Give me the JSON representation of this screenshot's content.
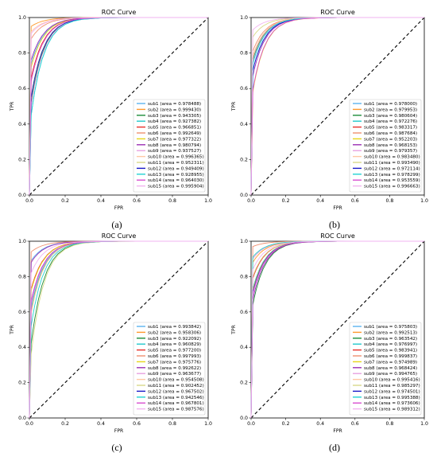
{
  "figure": {
    "background": "#ffffff"
  },
  "chart_data": [
    {
      "panel": "(a)",
      "type": "line",
      "title": "ROC Curve",
      "xlabel": "FPR",
      "ylabel": "TPR",
      "xlim": [
        0,
        1
      ],
      "ylim": [
        0,
        1
      ],
      "xticks": [
        "0.0",
        "0.2",
        "0.4",
        "0.6",
        "0.8",
        "1.0"
      ],
      "yticks": [
        "0.0",
        "0.2",
        "0.4",
        "0.6",
        "0.8",
        "1.0"
      ],
      "grid": false,
      "legend_position": "lower right",
      "diagonal": true,
      "series": [
        {
          "name": "sub1 (area = 0.978488)",
          "color": "#5ab4ef",
          "tpr_at_001": 0.74
        },
        {
          "name": "sub2 (area = 0.999430)",
          "color": "#ff9a2e",
          "tpr_at_001": 0.95
        },
        {
          "name": "sub3 (area = 0.943305)",
          "color": "#1e8c3a",
          "tpr_at_001": 0.52
        },
        {
          "name": "sub4 (area = 0.927382)",
          "color": "#22c9cc",
          "tpr_at_001": 0.45
        },
        {
          "name": "sub5 (area = 0.966851)",
          "color": "#e8302a",
          "tpr_at_001": 0.66
        },
        {
          "name": "sub6 (area = 0.992649)",
          "color": "#f09070",
          "tpr_at_001": 0.88
        },
        {
          "name": "sub7 (area = 0.977322)",
          "color": "#e6d619",
          "tpr_at_001": 0.72
        },
        {
          "name": "sub8 (area = 0.980794)",
          "color": "#9b2fb5",
          "tpr_at_001": 0.76
        },
        {
          "name": "sub9 (area = 0.937527)",
          "color": "#e8a2e0",
          "tpr_at_001": 0.5
        },
        {
          "name": "sub10 (area = 0.996365)",
          "color": "#ffc9a5",
          "tpr_at_001": 0.92
        },
        {
          "name": "sub11 (area = 0.952311)",
          "color": "#d9d98a",
          "tpr_at_001": 0.56
        },
        {
          "name": "sub12 (area = 0.949409)",
          "color": "#1818c8",
          "tpr_at_001": 0.55
        },
        {
          "name": "sub13 (area = 0.928955)",
          "color": "#22d3d3",
          "tpr_at_001": 0.45
        },
        {
          "name": "sub14 (area = 0.964030)",
          "color": "#d94fd0",
          "tpr_at_001": 0.64
        },
        {
          "name": "sub15 (area = 0.995904)",
          "color": "#f2b3f0",
          "tpr_at_001": 0.91
        }
      ]
    },
    {
      "panel": "(b)",
      "type": "line",
      "title": "ROC Curve",
      "xlabel": "FPR",
      "ylabel": "TPR",
      "xlim": [
        0,
        1
      ],
      "ylim": [
        0,
        1
      ],
      "xticks": [
        "0.0",
        "0.2",
        "0.4",
        "0.6",
        "0.8",
        "1.0"
      ],
      "yticks": [
        "0.0",
        "0.2",
        "0.4",
        "0.6",
        "0.8",
        "1.0"
      ],
      "grid": false,
      "legend_position": "lower right",
      "diagonal": true,
      "series": [
        {
          "name": "sub1 (area = 0.978000)",
          "color": "#5ab4ef",
          "tpr_at_001": 0.74
        },
        {
          "name": "sub2 (area = 0.979953)",
          "color": "#ff9a2e",
          "tpr_at_001": 0.75
        },
        {
          "name": "sub3 (area = 0.980604)",
          "color": "#1e8c3a",
          "tpr_at_001": 0.76
        },
        {
          "name": "sub4 (area = 0.972276)",
          "color": "#22c9cc",
          "tpr_at_001": 0.7
        },
        {
          "name": "sub5 (area = 0.983317)",
          "color": "#e8302a",
          "tpr_at_001": 0.78
        },
        {
          "name": "sub6 (area = 0.987684)",
          "color": "#f09070",
          "tpr_at_001": 0.81
        },
        {
          "name": "sub7 (area = 0.952203)",
          "color": "#e6d619",
          "tpr_at_001": 0.58
        },
        {
          "name": "sub8 (area = 0.968153)",
          "color": "#9b2fb5",
          "tpr_at_001": 0.67
        },
        {
          "name": "sub9 (area = 0.979357)",
          "color": "#e8a2e0",
          "tpr_at_001": 0.75
        },
        {
          "name": "sub10 (area = 0.983480)",
          "color": "#ffc9a5",
          "tpr_at_001": 0.78
        },
        {
          "name": "sub11 (area = 0.993490)",
          "color": "#d9d98a",
          "tpr_at_001": 0.89
        },
        {
          "name": "sub12 (area = 0.972114)",
          "color": "#1818c8",
          "tpr_at_001": 0.7
        },
        {
          "name": "sub13 (area = 0.978299)",
          "color": "#22d3d3",
          "tpr_at_001": 0.74
        },
        {
          "name": "sub14 (area = 0.953559)",
          "color": "#d94fd0",
          "tpr_at_001": 0.59
        },
        {
          "name": "sub15 (area = 0.996663)",
          "color": "#f2b3f0",
          "tpr_at_001": 0.93
        }
      ]
    },
    {
      "panel": "(c)",
      "type": "line",
      "title": "ROC Curve",
      "xlabel": "FPR",
      "ylabel": "TPR",
      "xlim": [
        0,
        1
      ],
      "ylim": [
        0,
        1
      ],
      "xticks": [
        "0.0",
        "0.2",
        "0.4",
        "0.6",
        "0.8",
        "1.0"
      ],
      "yticks": [
        "0.0",
        "0.2",
        "0.4",
        "0.6",
        "0.8",
        "1.0"
      ],
      "grid": false,
      "legend_position": "lower right",
      "diagonal": true,
      "series": [
        {
          "name": "sub1 (area = 0.993842)",
          "color": "#5ab4ef",
          "tpr_at_001": 0.89
        },
        {
          "name": "sub2 (area = 0.958306)",
          "color": "#ff9a2e",
          "tpr_at_001": 0.61
        },
        {
          "name": "sub3 (area = 0.922092)",
          "color": "#1e8c3a",
          "tpr_at_001": 0.42
        },
        {
          "name": "sub4 (area = 0.960829)",
          "color": "#22c9cc",
          "tpr_at_001": 0.62
        },
        {
          "name": "sub5 (area = 0.977200)",
          "color": "#e8302a",
          "tpr_at_001": 0.73
        },
        {
          "name": "sub6 (area = 0.997993)",
          "color": "#f09070",
          "tpr_at_001": 0.94
        },
        {
          "name": "sub7 (area = 0.975776)",
          "color": "#e6d619",
          "tpr_at_001": 0.72
        },
        {
          "name": "sub8 (area = 0.992622)",
          "color": "#9b2fb5",
          "tpr_at_001": 0.88
        },
        {
          "name": "sub9 (area = 0.963677)",
          "color": "#e8a2e0",
          "tpr_at_001": 0.64
        },
        {
          "name": "sub10 (area = 0.954508)",
          "color": "#ffc9a5",
          "tpr_at_001": 0.59
        },
        {
          "name": "sub11 (area = 0.902452)",
          "color": "#d9d98a",
          "tpr_at_001": 0.36
        },
        {
          "name": "sub12 (area = 0.967502)",
          "color": "#1818c8",
          "tpr_at_001": 0.66
        },
        {
          "name": "sub13 (area = 0.942546)",
          "color": "#22d3d3",
          "tpr_at_001": 0.52
        },
        {
          "name": "sub14 (area = 0.967801)",
          "color": "#d94fd0",
          "tpr_at_001": 0.66
        },
        {
          "name": "sub15 (area = 0.987576)",
          "color": "#f2b3f0",
          "tpr_at_001": 0.82
        }
      ]
    },
    {
      "panel": "(d)",
      "type": "line",
      "title": "ROC Curve",
      "xlabel": "FPR",
      "ylabel": "TPR",
      "xlim": [
        0,
        1
      ],
      "ylim": [
        0,
        1
      ],
      "xticks": [
        "0.0",
        "0.2",
        "0.4",
        "0.6",
        "0.8",
        "1.0"
      ],
      "yticks": [
        "0.0",
        "0.2",
        "0.4",
        "0.6",
        "0.8",
        "1.0"
      ],
      "grid": false,
      "legend_position": "lower right",
      "diagonal": true,
      "series": [
        {
          "name": "sub1 (area = 0.975803)",
          "color": "#5ab4ef",
          "tpr_at_001": 0.72
        },
        {
          "name": "sub2 (area = 0.992513)",
          "color": "#ff9a2e",
          "tpr_at_001": 0.88
        },
        {
          "name": "sub3 (area = 0.963542)",
          "color": "#1e8c3a",
          "tpr_at_001": 0.64
        },
        {
          "name": "sub4 (area = 0.976997)",
          "color": "#22c9cc",
          "tpr_at_001": 0.73
        },
        {
          "name": "sub5 (area = 0.983941)",
          "color": "#e8302a",
          "tpr_at_001": 0.79
        },
        {
          "name": "sub6 (area = 0.999837)",
          "color": "#f09070",
          "tpr_at_001": 0.97
        },
        {
          "name": "sub7 (area = 0.974989)",
          "color": "#e6d619",
          "tpr_at_001": 0.72
        },
        {
          "name": "sub8 (area = 0.968424)",
          "color": "#9b2fb5",
          "tpr_at_001": 0.67
        },
        {
          "name": "sub9 (area = 0.994765)",
          "color": "#e8a2e0",
          "tpr_at_001": 0.9
        },
        {
          "name": "sub10 (area = 0.995416)",
          "color": "#ffc9a5",
          "tpr_at_001": 0.91
        },
        {
          "name": "sub11 (area = 0.985297)",
          "color": "#d9d98a",
          "tpr_at_001": 0.8
        },
        {
          "name": "sub12 (area = 0.974501)",
          "color": "#1818c8",
          "tpr_at_001": 0.71
        },
        {
          "name": "sub13 (area = 0.995388)",
          "color": "#22d3d3",
          "tpr_at_001": 0.91
        },
        {
          "name": "sub14 (area = 0.973606)",
          "color": "#d94fd0",
          "tpr_at_001": 0.7
        },
        {
          "name": "sub15 (area = 0.989312)",
          "color": "#f2b3f0",
          "tpr_at_001": 0.84
        }
      ]
    }
  ]
}
